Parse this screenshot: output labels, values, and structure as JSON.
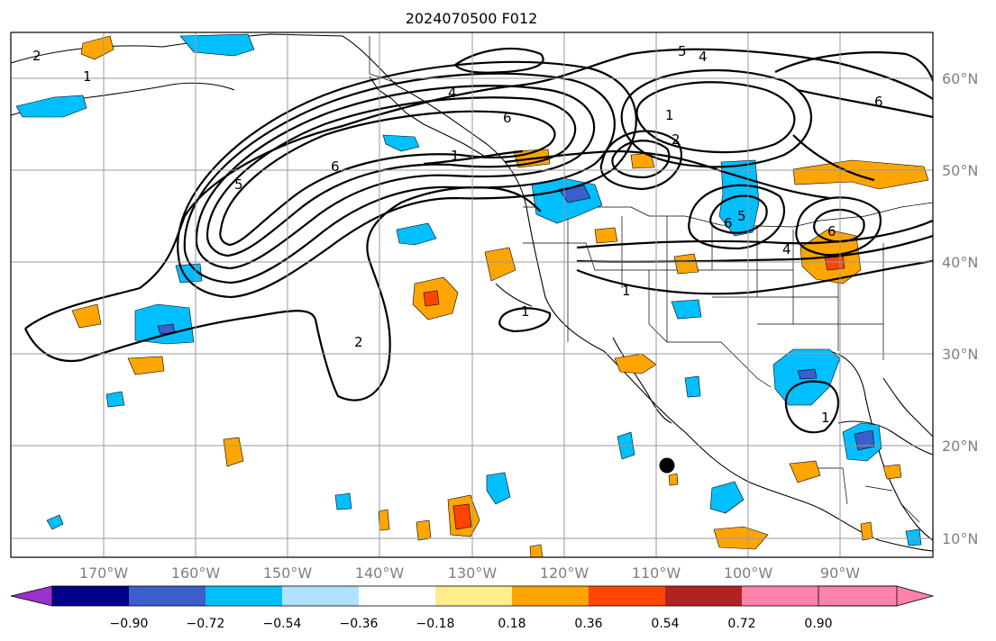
{
  "title": "2024070500 F012",
  "map": {
    "latitude_labels": [
      "60°N",
      "50°N",
      "40°N",
      "30°N",
      "20°N",
      "10°N"
    ],
    "longitude_labels": [
      "170°W",
      "160°W",
      "150°W",
      "140°W",
      "130°W",
      "120°W",
      "110°W",
      "100°W",
      "90°W"
    ],
    "contour_labels": [
      "2",
      "1",
      "4",
      "5",
      "4",
      "6",
      "6",
      "5",
      "1",
      "2",
      "1",
      "6",
      "5",
      "4",
      "6",
      "6",
      "1",
      "2",
      "1",
      "1"
    ],
    "marker": "storm-center-dot"
  },
  "colorbar": {
    "colors": [
      "#9932cc",
      "#00008b",
      "#3a5fcd",
      "#00bfff",
      "#b0e2ff",
      "#ffffff",
      "#ffec8b",
      "#ffa500",
      "#ff4500",
      "#b22222",
      "#ff82ab"
    ],
    "tick_labels": [
      "−0.90",
      "−0.72",
      "−0.54",
      "−0.36",
      "−0.18",
      "0.18",
      "0.36",
      "0.54",
      "0.72",
      "0.90"
    ]
  }
}
